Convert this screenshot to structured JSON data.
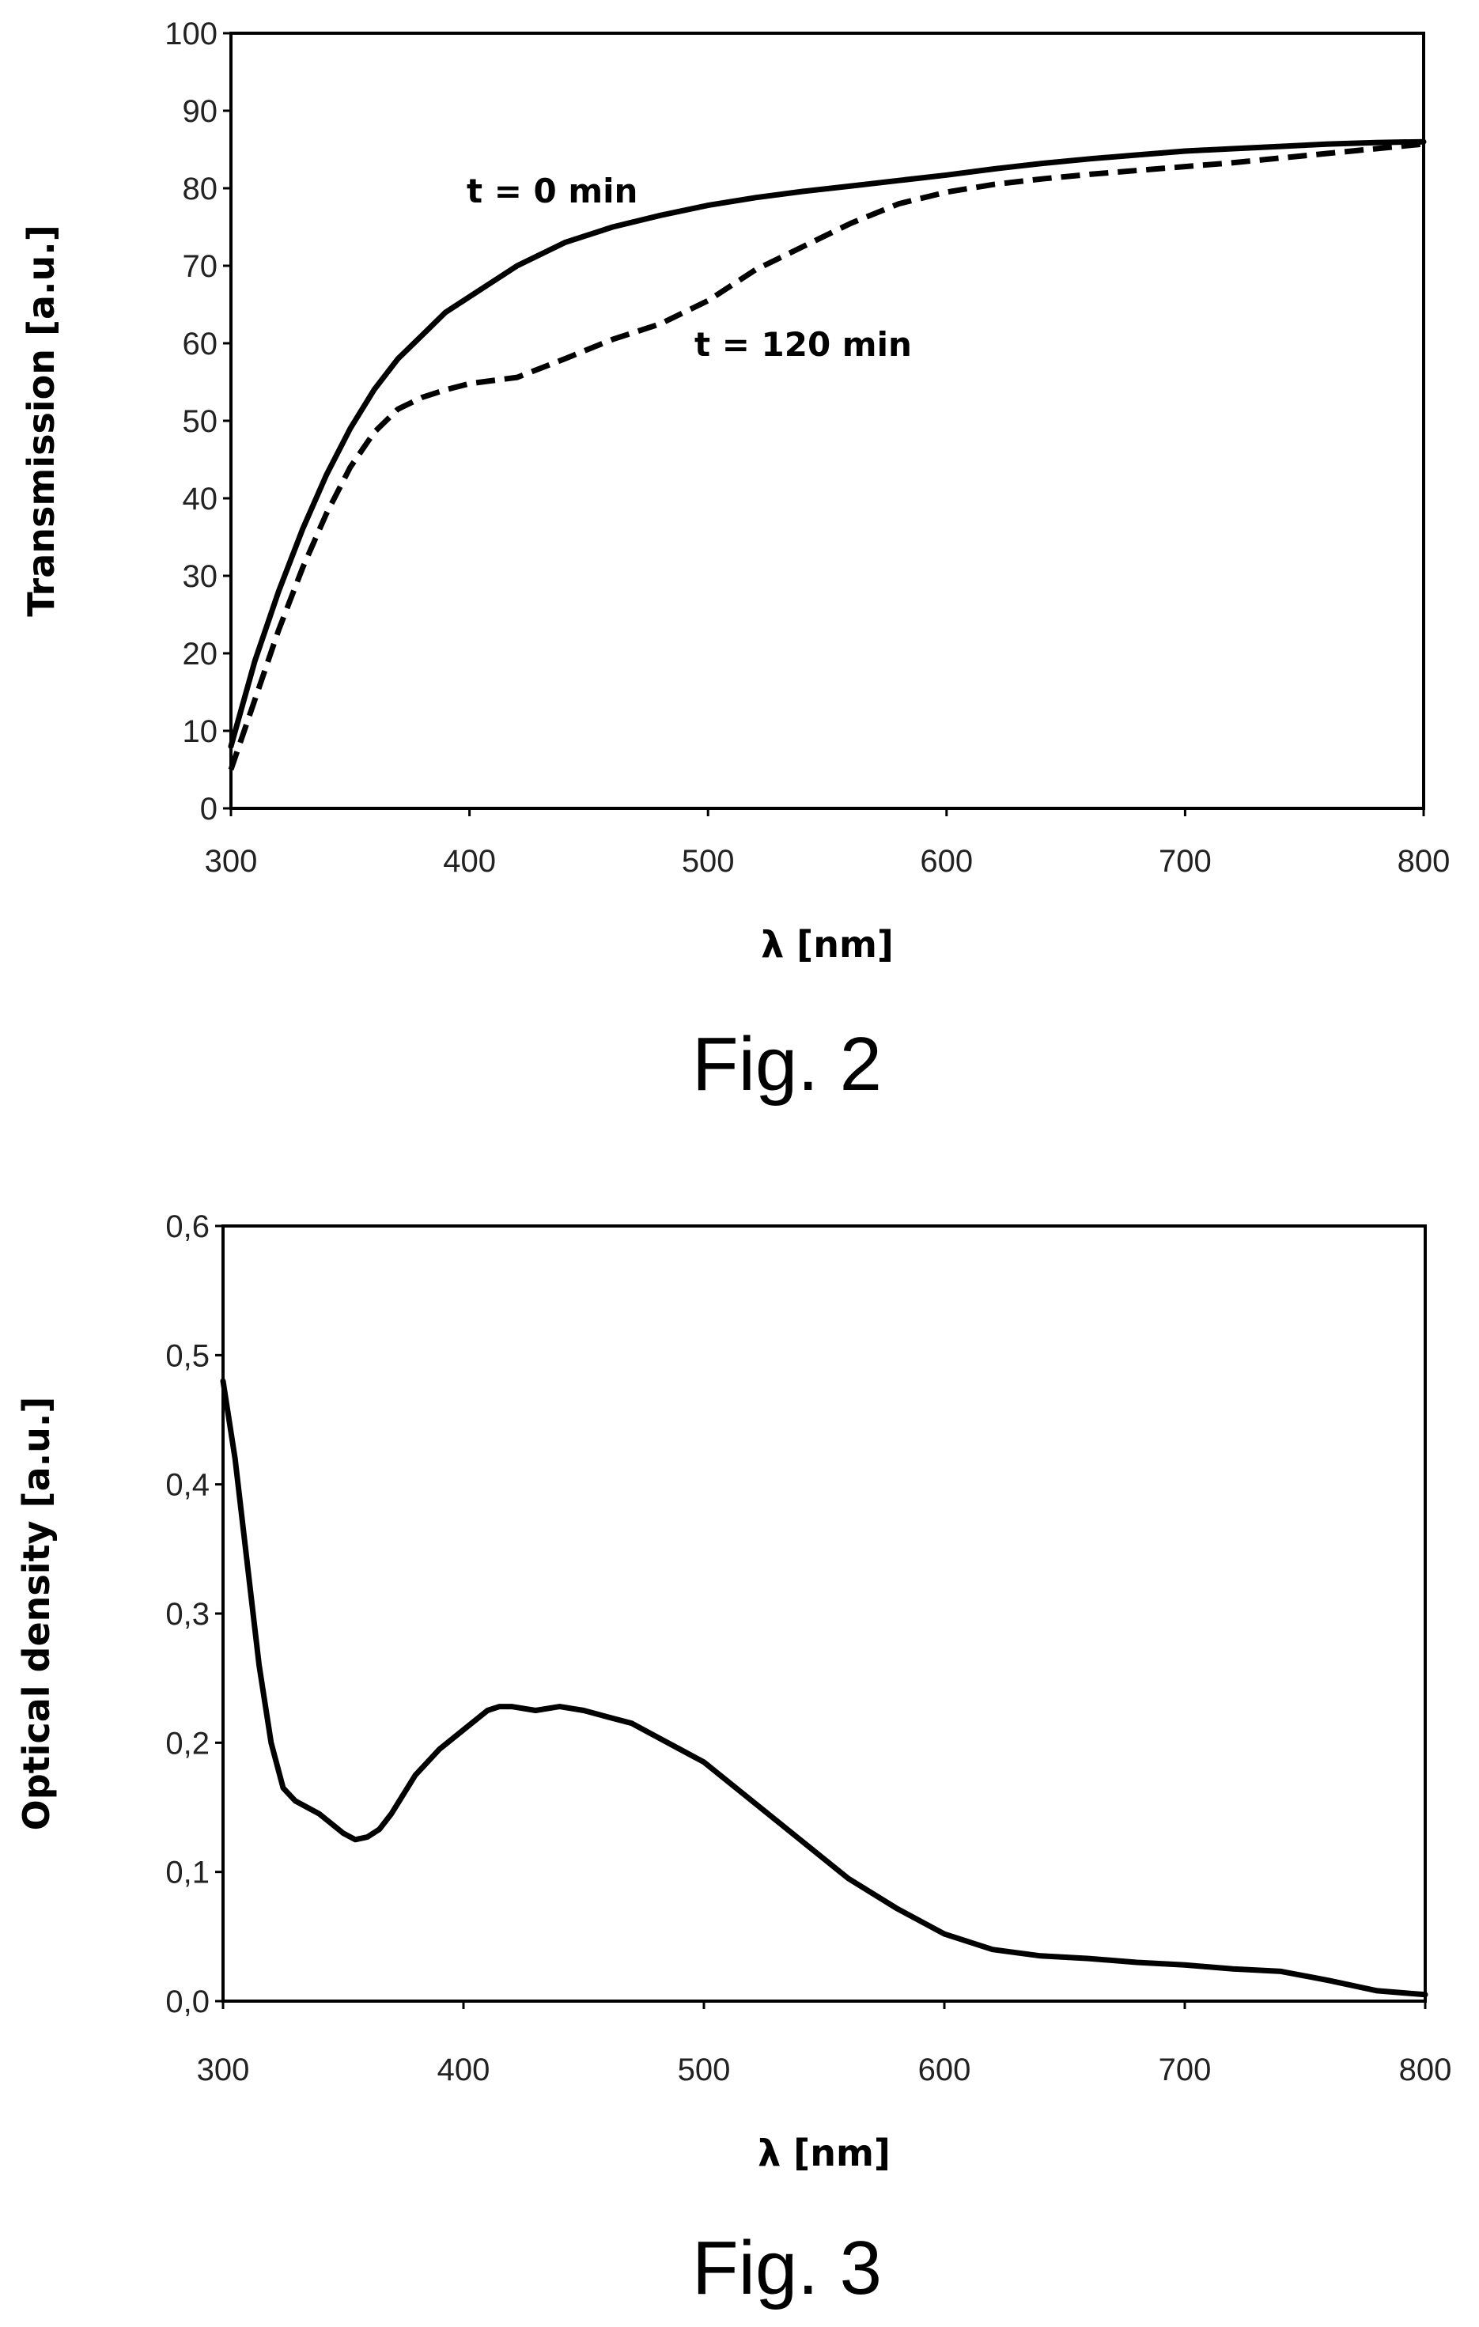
{
  "chart_data": [
    {
      "type": "line",
      "caption": "Fig. 2",
      "xlabel": "λ [nm]",
      "ylabel": "Transmission [a.u.]",
      "xlim": [
        300,
        800
      ],
      "ylim": [
        0,
        100
      ],
      "xticks": [
        300,
        400,
        500,
        600,
        700,
        800
      ],
      "yticks": [
        0,
        10,
        20,
        30,
        40,
        50,
        60,
        70,
        80,
        90,
        100
      ],
      "grid": false,
      "series": [
        {
          "label": "t = 0 min",
          "style": "solid",
          "x": [
            300,
            310,
            320,
            330,
            340,
            350,
            360,
            370,
            380,
            390,
            400,
            420,
            440,
            460,
            480,
            500,
            520,
            540,
            560,
            580,
            600,
            620,
            640,
            660,
            680,
            700,
            720,
            740,
            760,
            780,
            800
          ],
          "y": [
            8,
            19,
            28,
            36,
            43,
            49,
            54,
            58,
            61,
            64,
            66,
            70,
            73,
            75,
            76.5,
            77.8,
            78.8,
            79.6,
            80.3,
            81,
            81.7,
            82.5,
            83.2,
            83.8,
            84.3,
            84.8,
            85.1,
            85.4,
            85.7,
            85.9,
            86
          ]
        },
        {
          "label": "t = 120 min",
          "style": "dashed",
          "x": [
            300,
            310,
            320,
            330,
            340,
            350,
            360,
            370,
            380,
            390,
            400,
            420,
            440,
            460,
            480,
            500,
            520,
            540,
            560,
            580,
            600,
            620,
            640,
            660,
            680,
            700,
            720,
            740,
            760,
            780,
            800
          ],
          "y": [
            5,
            14,
            23,
            31,
            38,
            44,
            48.5,
            51.5,
            53,
            54,
            54.8,
            55.6,
            58,
            60.5,
            62.5,
            65.5,
            69.5,
            72.5,
            75.5,
            78,
            79.5,
            80.5,
            81.2,
            81.8,
            82.3,
            82.8,
            83.3,
            83.9,
            84.5,
            85.1,
            85.7
          ]
        }
      ]
    },
    {
      "type": "line",
      "caption": "Fig. 3",
      "xlabel": "λ [nm]",
      "ylabel": "Optical density [a.u.]",
      "xlim": [
        300,
        800
      ],
      "ylim": [
        0,
        0.6
      ],
      "xticks": [
        300,
        400,
        500,
        600,
        700,
        800
      ],
      "yticks": [
        0,
        0.1,
        0.2,
        0.3,
        0.4,
        0.5,
        0.6
      ],
      "ytick_labels": [
        "0,0",
        "0,1",
        "0,2",
        "0,3",
        "0,4",
        "0,5",
        "0,6"
      ],
      "grid": false,
      "series": [
        {
          "style": "solid",
          "x": [
            300,
            305,
            310,
            315,
            320,
            325,
            330,
            340,
            350,
            355,
            360,
            365,
            370,
            380,
            390,
            400,
            410,
            415,
            420,
            430,
            440,
            450,
            460,
            470,
            480,
            490,
            500,
            520,
            540,
            560,
            580,
            600,
            620,
            640,
            660,
            680,
            700,
            720,
            740,
            760,
            780,
            800
          ],
          "y": [
            0.48,
            0.42,
            0.34,
            0.26,
            0.2,
            0.165,
            0.155,
            0.145,
            0.13,
            0.125,
            0.127,
            0.133,
            0.145,
            0.175,
            0.195,
            0.21,
            0.225,
            0.228,
            0.228,
            0.225,
            0.228,
            0.225,
            0.22,
            0.215,
            0.205,
            0.195,
            0.185,
            0.155,
            0.125,
            0.095,
            0.072,
            0.052,
            0.04,
            0.035,
            0.033,
            0.03,
            0.028,
            0.025,
            0.023,
            0.016,
            0.008,
            0.005
          ]
        }
      ]
    }
  ]
}
